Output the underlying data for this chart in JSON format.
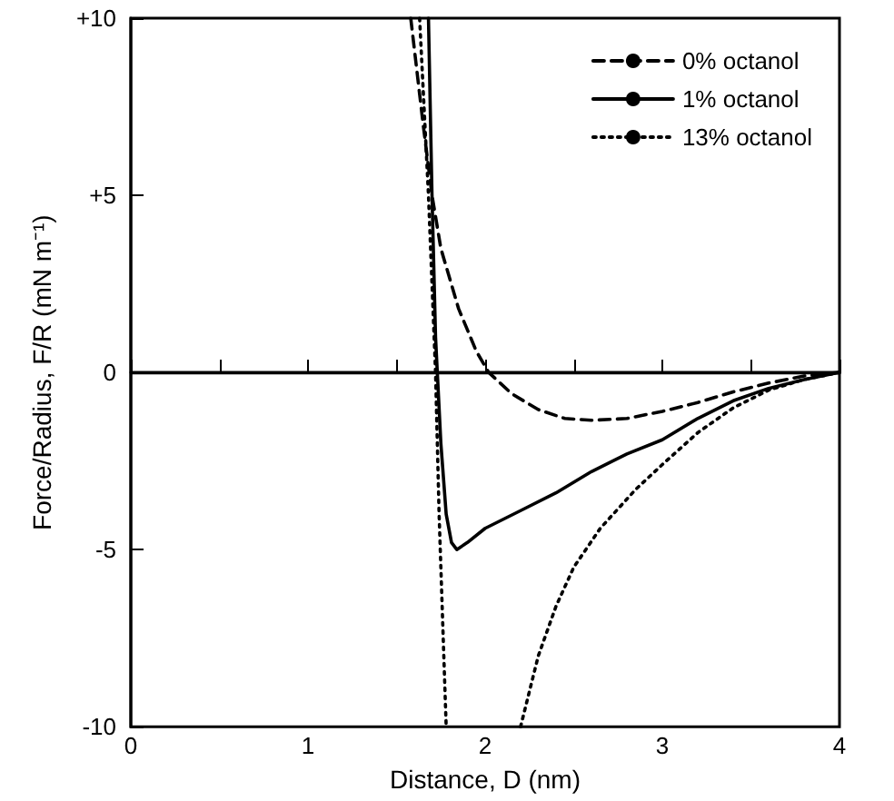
{
  "chart_data": {
    "type": "line",
    "xlabel": "Distance, D (nm)",
    "ylabel": "Force/Radius, F/R (mN m⁻¹)",
    "xlim": [
      0,
      4
    ],
    "ylim": [
      -10,
      10
    ],
    "xticks": [
      0,
      {
        "value": 0.5,
        "label": null
      },
      1,
      {
        "value": 1.5,
        "label": null
      },
      2,
      {
        "value": 2.5,
        "label": null
      },
      3,
      {
        "value": 3.5,
        "label": null
      },
      4
    ],
    "yticks": [
      {
        "value": -10,
        "label": "-10"
      },
      {
        "value": -5,
        "label": "-5"
      },
      0,
      {
        "value": 5,
        "label": "+5"
      },
      {
        "value": 10,
        "label": "+10"
      }
    ],
    "grid": false,
    "legend": "top right",
    "marker": "none",
    "ref_lines": [
      {
        "axis": "y",
        "value": 0,
        "label": null,
        "color": "#000000",
        "line_style": "solid"
      }
    ],
    "series": [
      {
        "name": "0% octanol",
        "color": "#000000",
        "line_style": "dashed",
        "x": [
          1.58,
          1.65,
          1.7,
          1.75,
          1.85,
          1.95,
          2.02,
          2.15,
          2.3,
          2.45,
          2.6,
          2.8,
          3.0,
          3.2,
          3.4,
          3.6,
          3.8,
          4.0
        ],
        "values": [
          10,
          7,
          5,
          3.5,
          1.8,
          0.6,
          0,
          -0.6,
          -1.05,
          -1.3,
          -1.35,
          -1.3,
          -1.1,
          -0.85,
          -0.55,
          -0.3,
          -0.1,
          0
        ]
      },
      {
        "name": "1% octanol",
        "color": "#000000",
        "line_style": "solid",
        "x": [
          1.68,
          1.7,
          1.72,
          1.73,
          1.75,
          1.78,
          1.81,
          1.84,
          1.9,
          2.0,
          2.2,
          2.4,
          2.6,
          2.8,
          3.0,
          3.2,
          3.4,
          3.6,
          3.8,
          4.0
        ],
        "values": [
          10,
          5,
          1,
          0,
          -2,
          -4,
          -4.8,
          -5,
          -4.8,
          -4.4,
          -3.9,
          -3.4,
          -2.8,
          -2.3,
          -1.9,
          -1.3,
          -0.8,
          -0.45,
          -0.2,
          0
        ]
      },
      {
        "name": "13% octanol",
        "color": "#000000",
        "line_style": "dotted",
        "x": [
          1.63,
          1.68,
          1.72,
          1.74,
          1.76,
          1.78,
          2.0,
          2.2,
          2.3,
          2.4,
          2.5,
          2.65,
          2.85,
          3.0,
          3.2,
          3.4,
          3.6,
          3.8,
          4.0
        ],
        "values": [
          10,
          5,
          0,
          -4,
          -7,
          -10,
          null,
          -10,
          -8,
          -6.6,
          -5.5,
          -4.4,
          -3.3,
          -2.6,
          -1.7,
          -1.0,
          -0.5,
          -0.2,
          0
        ]
      }
    ]
  }
}
